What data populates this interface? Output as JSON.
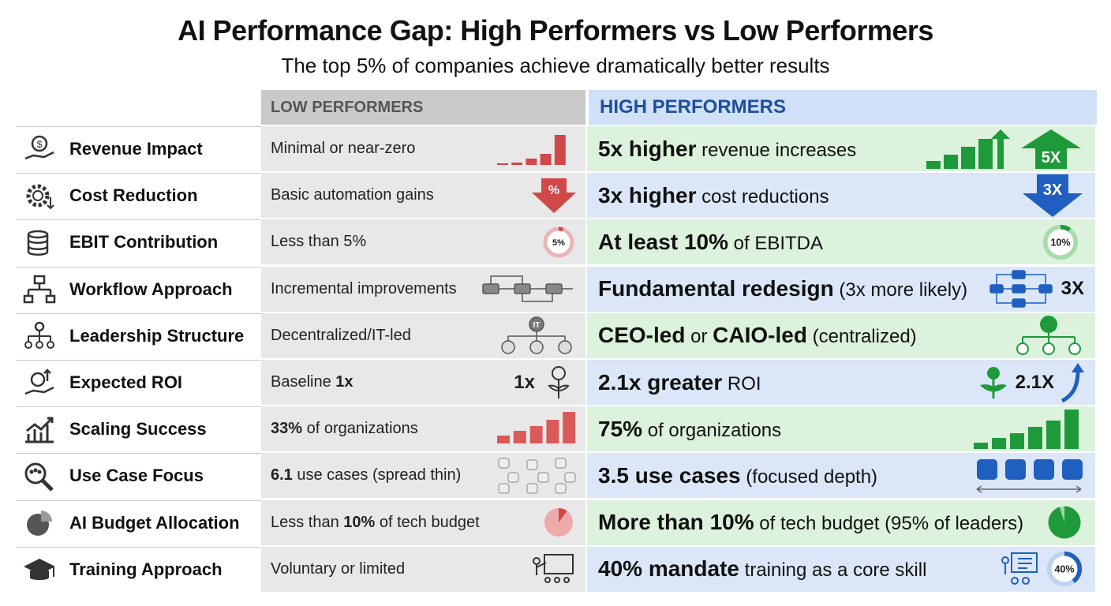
{
  "title": "AI Performance Gap: High Performers vs Low Performers",
  "subtitle": "The top 5% of companies achieve dramatically better results",
  "headers": {
    "low": "LOW PERFORMERS",
    "high": "HIGH PERFORMERS"
  },
  "colors": {
    "low_accent": "#d04848",
    "high_green": "#1f9a3a",
    "high_blue": "#1f5fbf",
    "low_bg": "#e8e8e8",
    "high_green_bg": "#dcf2dc",
    "high_blue_bg": "#dbe7f8"
  },
  "rows": [
    {
      "label": "Revenue Impact",
      "icon": "hand-coin-icon",
      "low": [
        {
          "t": "Minimal or near-zero"
        }
      ],
      "low_icon": "red-rising-bars-icon",
      "high": [
        {
          "t": "5x higher",
          "b": 1
        },
        {
          "t": " revenue increases"
        }
      ],
      "high_icon": "green-bars-up-arrow-icon",
      "high_badge": "5X",
      "tint": "g"
    },
    {
      "label": "Cost Reduction",
      "icon": "gear-dollar-icon",
      "low": [
        {
          "t": "Basic automation gains"
        }
      ],
      "low_icon": "red-percent-down-arrow-icon",
      "low_badge": "%",
      "high": [
        {
          "t": "3x higher",
          "b": 1
        },
        {
          "t": " cost reductions"
        }
      ],
      "high_icon": "blue-down-arrow-icon",
      "high_badge": "3X",
      "tint": "bl"
    },
    {
      "label": "EBIT Contribution",
      "icon": "coin-stack-icon",
      "low": [
        {
          "t": "Less than 5%"
        }
      ],
      "low_icon": "donut-5-icon",
      "low_badge": "5%",
      "low_pct": 5,
      "high": [
        {
          "t": "At least ",
          "b": 1
        },
        {
          "t": "10%",
          "b": 1
        },
        {
          "t": " of EBITDA"
        }
      ],
      "high_icon": "donut-10-icon",
      "high_badge": "10%",
      "high_pct": 10,
      "tint": "g"
    },
    {
      "label": "Workflow Approach",
      "icon": "flowchart-icon",
      "low": [
        {
          "t": "Incremental improvements"
        }
      ],
      "low_icon": "linear-flow-icon",
      "high": [
        {
          "t": "Fundamental redesign",
          "b": 1
        },
        {
          "t": " (3x more likely)"
        }
      ],
      "high_icon": "redesign-flow-icon",
      "high_badge": "3X",
      "tint": "bl"
    },
    {
      "label": "Leadership Structure",
      "icon": "org-chart-icon",
      "low": [
        {
          "t": "Decentralized/IT-led"
        }
      ],
      "low_icon": "it-org-icon",
      "low_badge": "IT",
      "high": [
        {
          "t": "CEO-led",
          "b": 1
        },
        {
          "t": " or "
        },
        {
          "t": "CAIO-led",
          "b": 1
        },
        {
          "t": " (centralized)"
        }
      ],
      "high_icon": "ceo-org-icon",
      "tint": "g"
    },
    {
      "label": "Expected ROI",
      "icon": "hand-growth-icon",
      "low": [
        {
          "t": "Baseline "
        },
        {
          "t": "1x",
          "b": 1
        }
      ],
      "low_icon": "plant-coin-icon",
      "low_badge": "1x",
      "high": [
        {
          "t": "2.1x",
          "b": 1
        },
        {
          "t": " greater",
          "b": 1
        },
        {
          "t": " ROI"
        }
      ],
      "high_icon": "plant-up-arrow-icon",
      "high_badge": "2.1X",
      "tint": "bl"
    },
    {
      "label": "Scaling Success",
      "icon": "growth-chart-icon",
      "low": [
        {
          "t": "33%",
          "b": 1
        },
        {
          "t": " of organizations"
        }
      ],
      "low_icon": "red-bars-icon",
      "low_pct": 33,
      "high": [
        {
          "t": "75%",
          "b": 1
        },
        {
          "t": " of organizations"
        }
      ],
      "high_icon": "green-bars-icon",
      "high_pct": 75,
      "tint": "g"
    },
    {
      "label": "Use Case Focus",
      "icon": "magnifier-people-icon",
      "low": [
        {
          "t": "6.1",
          "b": 1
        },
        {
          "t": " use cases (spread thin)"
        }
      ],
      "low_icon": "scattered-apps-icon",
      "high": [
        {
          "t": "3.5",
          "b": 1
        },
        {
          "t": " use cases",
          "b": 1
        },
        {
          "t": " (focused depth)"
        }
      ],
      "high_icon": "focused-apps-icon",
      "tint": "bl"
    },
    {
      "label": "AI Budget Allocation",
      "icon": "pie-chart-icon",
      "low": [
        {
          "t": "Less than "
        },
        {
          "t": "10%",
          "b": 1
        },
        {
          "t": " of tech budget"
        }
      ],
      "low_icon": "red-pie-icon",
      "low_pct": 10,
      "high": [
        {
          "t": "More than ",
          "b": 1
        },
        {
          "t": "10%",
          "b": 1
        },
        {
          "t": " of tech budget (95% of leaders)"
        }
      ],
      "high_icon": "green-pie-icon",
      "high_pct": 95,
      "tint": "g"
    },
    {
      "label": "Training Approach",
      "icon": "graduation-cap-icon",
      "low": [
        {
          "t": "Voluntary or limited"
        }
      ],
      "low_icon": "presenter-icon",
      "high": [
        {
          "t": "40%",
          "b": 1
        },
        {
          "t": " mandate",
          "b": 1
        },
        {
          "t": " training as a core skill"
        }
      ],
      "high_icon": "presenter-donut-icon",
      "high_badge": "40%",
      "high_pct": 40,
      "tint": "bl"
    }
  ]
}
